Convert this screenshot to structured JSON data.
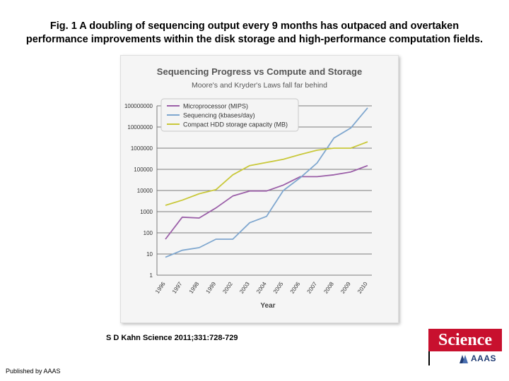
{
  "caption": {
    "line1": "Fig. 1 A doubling of sequencing output every 9 months has outpaced and overtaken",
    "line2": "performance improvements within the disk storage and high-performance computation fields."
  },
  "citation": "S D Kahn Science 2011;331:728-729",
  "publisher": "Published by AAAS",
  "logo": {
    "wordmark": "Science",
    "subtext": "AAAS"
  },
  "chart_data": {
    "type": "line",
    "title": "Sequencing Progress vs Compute and Storage",
    "subtitle": "Moore's and Kryder's Laws fall far behind",
    "xlabel": "Year",
    "ylabel": "",
    "yscale": "log",
    "ylim": [
      1,
      100000000
    ],
    "y_ticks": [
      "1",
      "10",
      "100",
      "1000",
      "10000",
      "100000",
      "1000000",
      "10000000",
      "100000000"
    ],
    "categories": [
      "1996",
      "1997",
      "1998",
      "1999",
      "2002",
      "2003",
      "2004",
      "2005",
      "2006",
      "2007",
      "2008",
      "2009",
      "2010"
    ],
    "grid": true,
    "legend": "top-left",
    "series": [
      {
        "name": "Microprocessor (MIPS)",
        "color": "#9b5fa8",
        "values": [
          50,
          550,
          500,
          1500,
          5500,
          9500,
          9500,
          18000,
          45000,
          45000,
          55000,
          75000,
          150000
        ]
      },
      {
        "name": "Sequencing (kbases/day)",
        "color": "#7fa7cf",
        "values": [
          7,
          15,
          20,
          50,
          50,
          300,
          600,
          10000,
          40000,
          200000,
          3000000,
          9000000,
          80000000
        ]
      },
      {
        "name": "Compact HDD storage capacity (MB)",
        "color": "#c9c83a",
        "values": [
          2000,
          3500,
          7000,
          11000,
          55000,
          150000,
          210000,
          300000,
          500000,
          800000,
          1000000,
          1000000,
          2000000
        ]
      }
    ]
  }
}
